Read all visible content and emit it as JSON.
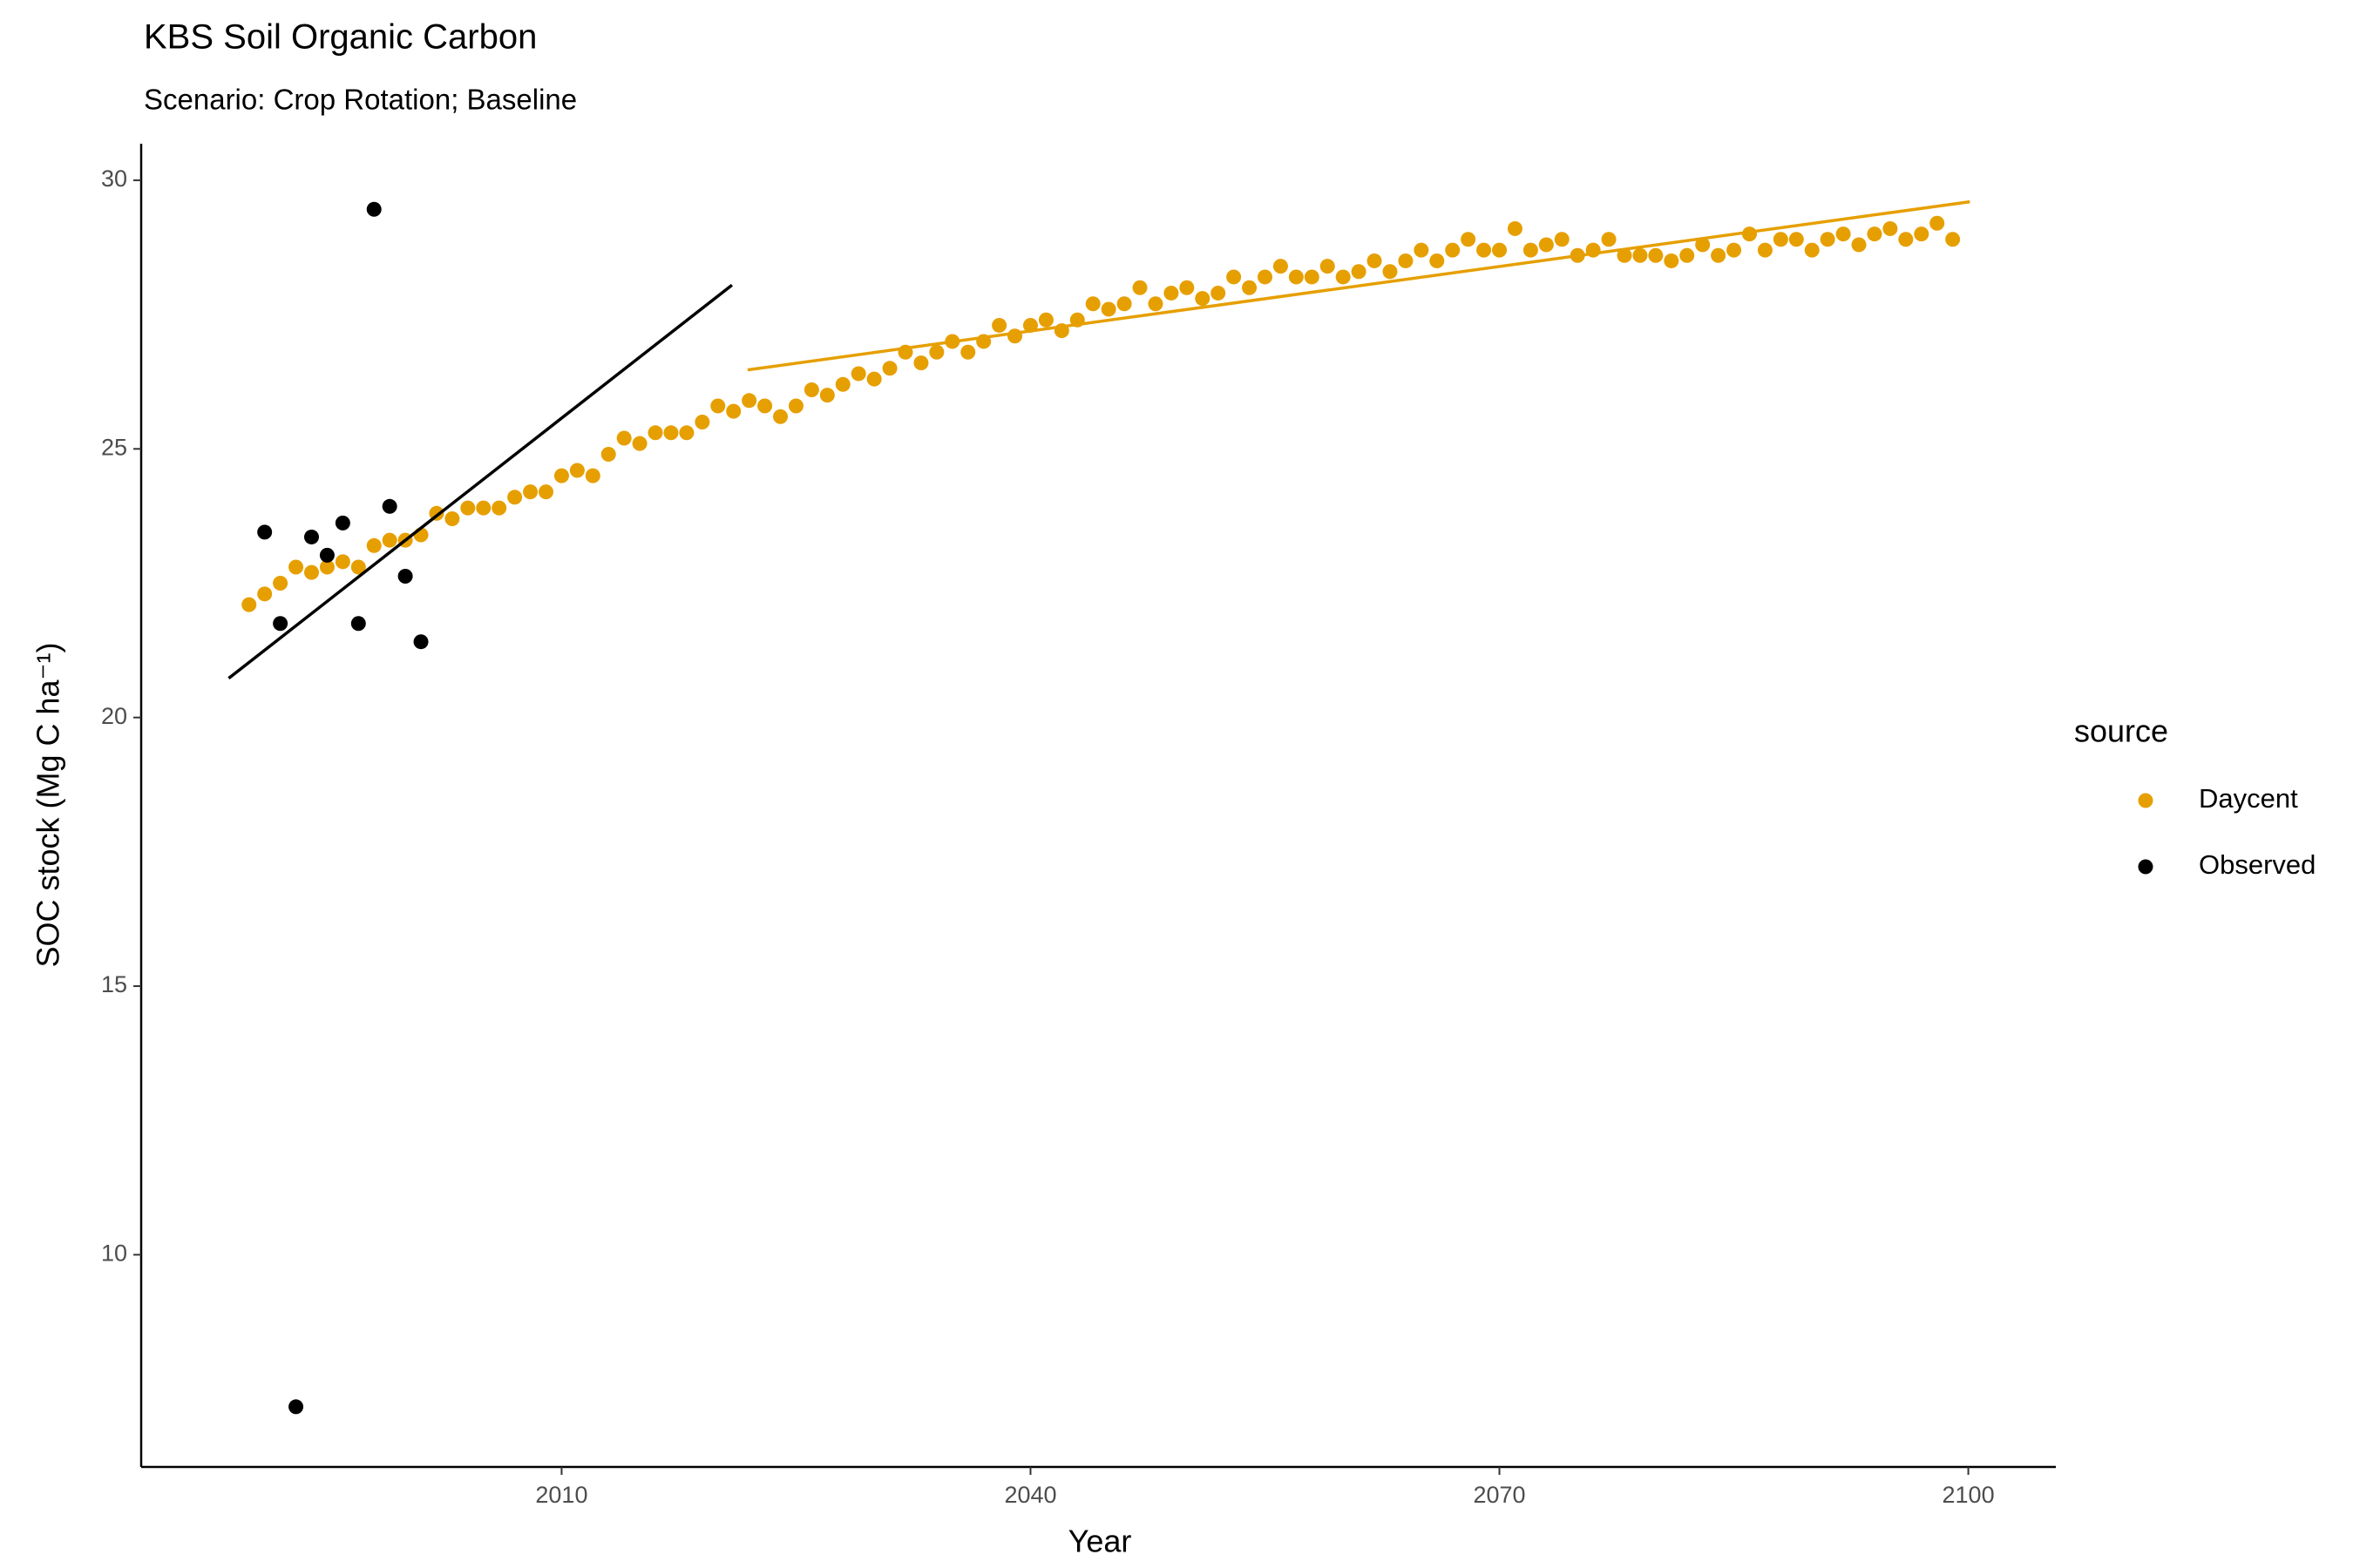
{
  "chart_data": {
    "type": "scatter",
    "title": "KBS Soil Organic Carbon",
    "subtitle": "Scenario: Crop Rotation; Baseline",
    "xlabel": "Year",
    "ylabel": "SOC stock (Mg C ha⁻¹)",
    "legend_title": "source",
    "legend": "right",
    "grid": false,
    "xlim": [
      1983.1,
      2105.6
    ],
    "ylim": [
      6.05,
      30.68
    ],
    "xticks": [
      2010,
      2040,
      2070,
      2100
    ],
    "yticks": [
      10,
      15,
      20,
      25,
      30
    ],
    "series": [
      {
        "name": "Daycent",
        "color": "#E69F00",
        "x": [
          1990,
          1991,
          1992,
          1993,
          1994,
          1995,
          1996,
          1997,
          1998,
          1999,
          2000,
          2001,
          2002,
          2003,
          2004,
          2005,
          2006,
          2007,
          2008,
          2009,
          2010,
          2011,
          2012,
          2013,
          2014,
          2015,
          2016,
          2017,
          2018,
          2019,
          2020,
          2021,
          2022,
          2023,
          2024,
          2025,
          2026,
          2027,
          2028,
          2029,
          2030,
          2031,
          2032,
          2033,
          2034,
          2035,
          2036,
          2037,
          2038,
          2039,
          2040,
          2041,
          2042,
          2043,
          2044,
          2045,
          2046,
          2047,
          2048,
          2049,
          2050,
          2051,
          2052,
          2053,
          2054,
          2055,
          2056,
          2057,
          2058,
          2059,
          2060,
          2061,
          2062,
          2063,
          2064,
          2065,
          2066,
          2067,
          2068,
          2069,
          2070,
          2071,
          2072,
          2073,
          2074,
          2075,
          2076,
          2077,
          2078,
          2079,
          2080,
          2081,
          2082,
          2083,
          2084,
          2085,
          2086,
          2087,
          2088,
          2089,
          2090,
          2091,
          2092,
          2093,
          2094,
          2095,
          2096,
          2097,
          2098,
          2099
        ],
        "values": [
          22.1,
          22.3,
          22.5,
          22.8,
          22.7,
          22.8,
          22.9,
          22.8,
          23.2,
          23.3,
          23.3,
          23.4,
          23.8,
          23.7,
          23.9,
          23.9,
          23.9,
          24.1,
          24.2,
          24.2,
          24.5,
          24.6,
          24.5,
          24.9,
          25.2,
          25.1,
          25.3,
          25.3,
          25.3,
          25.5,
          25.8,
          25.7,
          25.9,
          25.8,
          25.6,
          25.8,
          26.1,
          26.0,
          26.2,
          26.4,
          26.3,
          26.5,
          26.8,
          26.6,
          26.8,
          27.0,
          26.8,
          27.0,
          27.3,
          27.1,
          27.3,
          27.4,
          27.2,
          27.4,
          27.7,
          27.6,
          27.7,
          28.0,
          27.7,
          27.9,
          28.0,
          27.8,
          27.9,
          28.2,
          28.0,
          28.2,
          28.4,
          28.2,
          28.2,
          28.4,
          28.2,
          28.3,
          28.5,
          28.3,
          28.5,
          28.7,
          28.5,
          28.7,
          28.9,
          28.7,
          28.7,
          29.1,
          28.7,
          28.8,
          28.9,
          28.6,
          28.7,
          28.9,
          28.6,
          28.6,
          28.6,
          28.5,
          28.6,
          28.8,
          28.6,
          28.7,
          29.0,
          28.7,
          28.9,
          28.9,
          28.7,
          28.9,
          29.0,
          28.8,
          29.0,
          29.1,
          28.9,
          29.0,
          29.2,
          28.9
        ]
      },
      {
        "name": "Observed",
        "color": "#000000",
        "x": [
          1991,
          1992,
          1993,
          1994,
          1995,
          1996,
          1997,
          1998,
          1999,
          2000,
          2001
        ],
        "values": [
          23.45,
          21.75,
          7.17,
          23.36,
          23.02,
          23.62,
          21.75,
          29.46,
          23.93,
          22.63,
          21.41
        ]
      }
    ],
    "lines": [
      {
        "color": "#000000",
        "x": [
          1988.7,
          2020.9
        ],
        "values": [
          20.73,
          28.05
        ]
      },
      {
        "color": "#E69F00",
        "x": [
          2021.9,
          2100.1
        ],
        "values": [
          26.47,
          29.6
        ]
      }
    ]
  }
}
